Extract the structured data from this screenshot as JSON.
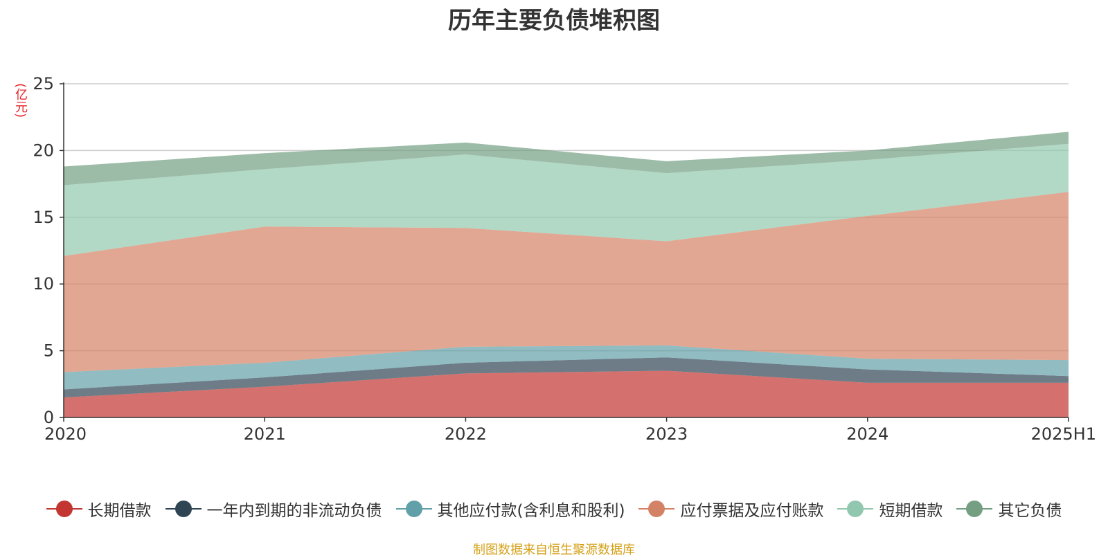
{
  "chart_data": {
    "type": "area",
    "stacked": true,
    "title": "历年主要负债堆积图",
    "y_unit": "(亿元)",
    "categories": [
      "2020",
      "2021",
      "2022",
      "2023",
      "2024",
      "2025H1"
    ],
    "ylim": [
      0,
      25
    ],
    "yticks": [
      "0",
      "5",
      "10",
      "15",
      "20",
      "25"
    ],
    "grid": true,
    "legend_position": "bottom",
    "series": [
      {
        "name": "长期借款",
        "color": "#c23531",
        "values": [
          1.5,
          2.3,
          3.3,
          3.5,
          2.6,
          2.6
        ]
      },
      {
        "name": "一年内到期的非流动负债",
        "color": "#2f4554",
        "values": [
          0.6,
          0.7,
          0.8,
          1.0,
          1.0,
          0.5
        ]
      },
      {
        "name": "其他应付款(含利息和股利)",
        "color": "#61a0a8",
        "values": [
          1.3,
          1.1,
          1.2,
          0.9,
          0.8,
          1.2
        ]
      },
      {
        "name": "应付票据及应付账款",
        "color": "#d48265",
        "values": [
          8.7,
          10.2,
          8.9,
          7.8,
          10.7,
          12.6
        ]
      },
      {
        "name": "短期借款",
        "color": "#91c7ae",
        "values": [
          5.3,
          4.3,
          5.5,
          5.1,
          4.2,
          3.6
        ]
      },
      {
        "name": "其它负债",
        "color": "#749f83",
        "values": [
          1.4,
          1.2,
          0.9,
          0.9,
          0.7,
          0.9
        ]
      }
    ]
  },
  "footer": {
    "source": "制图数据来自恒生聚源数据库"
  }
}
